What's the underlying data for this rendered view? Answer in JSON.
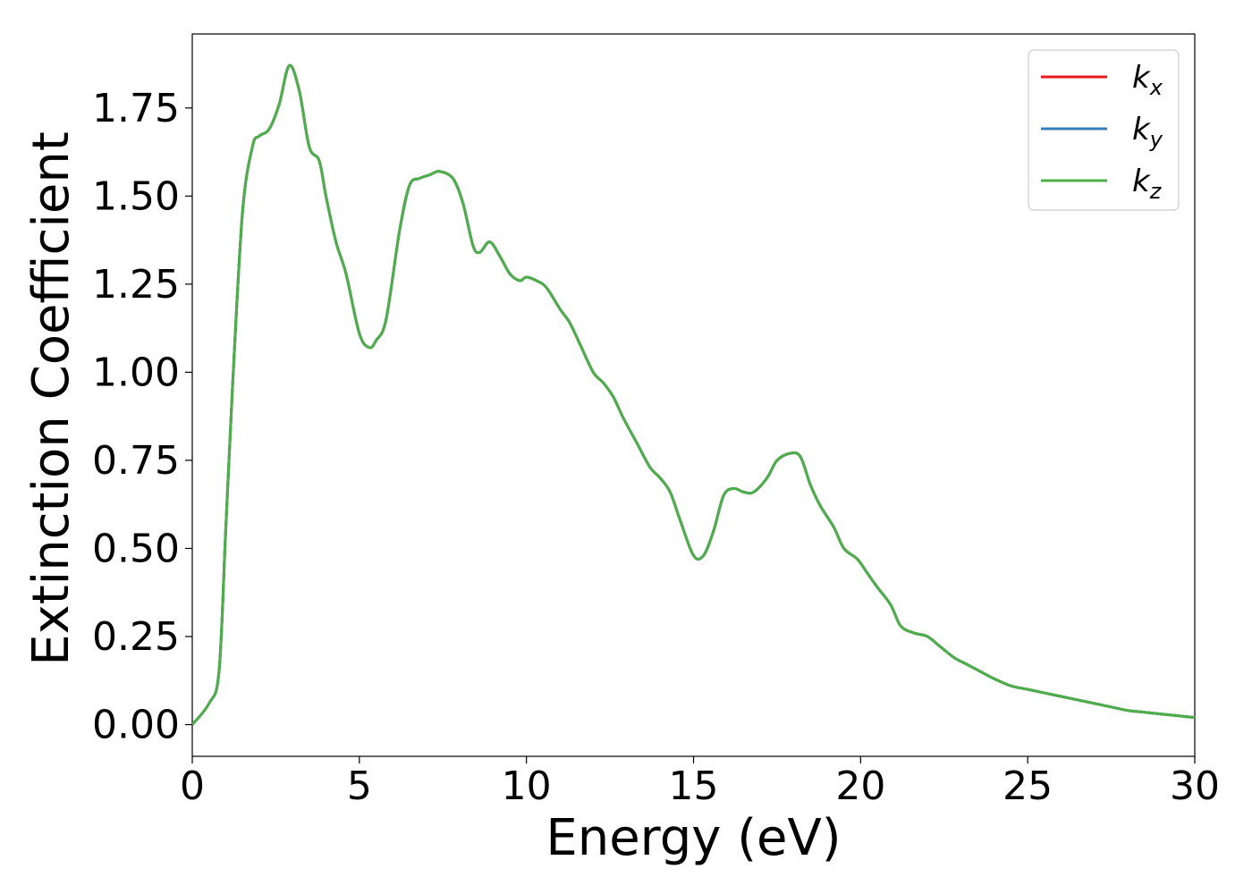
{
  "chart_data": {
    "type": "line",
    "title": "",
    "xlabel": "Energy (eV)",
    "ylabel": "Extinction Coefficient",
    "xlim": [
      0,
      30
    ],
    "ylim": [
      -0.09,
      1.96
    ],
    "xticks": [
      0,
      5,
      10,
      15,
      20,
      25,
      30
    ],
    "xtick_labels": [
      "0",
      "5",
      "10",
      "15",
      "20",
      "25",
      "30"
    ],
    "yticks": [
      0,
      0.25,
      0.5,
      0.75,
      1.0,
      1.25,
      1.5,
      1.75
    ],
    "ytick_labels": [
      "0.00",
      "0.25",
      "0.50",
      "0.75",
      "1.00",
      "1.25",
      "1.50",
      "1.75"
    ],
    "grid": false,
    "legend_position": "top-right",
    "x": [
      0,
      0.5,
      0.8,
      1.0,
      1.2,
      1.5,
      1.8,
      2.0,
      2.3,
      2.6,
      2.9,
      3.2,
      3.5,
      3.8,
      4.0,
      4.3,
      4.6,
      5.0,
      5.3,
      5.5,
      5.8,
      6.2,
      6.5,
      6.8,
      7.1,
      7.4,
      7.8,
      8.1,
      8.4,
      8.6,
      8.9,
      9.2,
      9.5,
      9.8,
      10.0,
      10.3,
      10.6,
      11.0,
      11.3,
      11.6,
      12.0,
      12.3,
      12.6,
      12.9,
      13.3,
      13.7,
      14.0,
      14.3,
      14.6,
      15.0,
      15.3,
      15.6,
      15.9,
      16.2,
      16.5,
      16.8,
      17.2,
      17.5,
      17.9,
      18.2,
      18.5,
      18.8,
      19.2,
      19.5,
      19.9,
      20.2,
      20.5,
      20.9,
      21.2,
      21.6,
      22.0,
      22.4,
      22.8,
      23.2,
      23.6,
      24.0,
      24.5,
      25.0,
      25.5,
      26.0,
      26.5,
      27.0,
      27.5,
      28.0,
      28.5,
      29.0,
      29.5,
      30.0
    ],
    "series": [
      {
        "name": "k_x",
        "label_base": "k",
        "label_sub": "x",
        "color": "#e41a1c",
        "values": "same_as_k_z"
      },
      {
        "name": "k_y",
        "label_base": "k",
        "label_sub": "y",
        "color": "#377eb8",
        "values": "same_as_k_z"
      },
      {
        "name": "k_z",
        "label_base": "k",
        "label_sub": "z",
        "color": "#4daf4a",
        "values": [
          0.0,
          0.06,
          0.15,
          0.55,
          0.95,
          1.45,
          1.64,
          1.67,
          1.69,
          1.76,
          1.87,
          1.8,
          1.64,
          1.6,
          1.5,
          1.37,
          1.28,
          1.11,
          1.07,
          1.09,
          1.15,
          1.4,
          1.53,
          1.55,
          1.56,
          1.57,
          1.55,
          1.48,
          1.36,
          1.34,
          1.37,
          1.33,
          1.28,
          1.26,
          1.27,
          1.26,
          1.24,
          1.18,
          1.14,
          1.08,
          1.0,
          0.97,
          0.93,
          0.87,
          0.8,
          0.73,
          0.7,
          0.66,
          0.58,
          0.48,
          0.48,
          0.55,
          0.65,
          0.67,
          0.66,
          0.66,
          0.7,
          0.75,
          0.77,
          0.76,
          0.68,
          0.62,
          0.56,
          0.5,
          0.47,
          0.43,
          0.39,
          0.34,
          0.28,
          0.26,
          0.25,
          0.22,
          0.19,
          0.17,
          0.15,
          0.13,
          0.11,
          0.1,
          0.09,
          0.08,
          0.07,
          0.06,
          0.05,
          0.04,
          0.035,
          0.03,
          0.025,
          0.02
        ]
      }
    ]
  }
}
